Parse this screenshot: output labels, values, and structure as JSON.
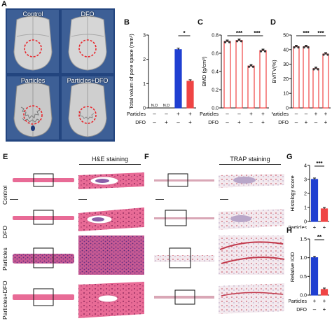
{
  "panels": {
    "a": "A",
    "b": "B",
    "c": "C",
    "d": "D",
    "e": "E",
    "f": "F",
    "g": "G",
    "h": "H"
  },
  "ct_labels": [
    "Control",
    "DFO",
    "Particles",
    "Particles+DFO"
  ],
  "colors": {
    "ct_background": "#23457f",
    "circle": "#e8262c",
    "bar_red": "#ef4444",
    "bar_blue": "#1f3fd1",
    "he_pink": "#e15b8a",
    "trap_red": "#c23a4c"
  },
  "stain_titles": {
    "he": "H&E staining",
    "trap": "TRAP staining"
  },
  "row_labels": [
    "Control",
    "DFO",
    "Particles",
    "Particles+DFO"
  ],
  "row_legend": {
    "particles": "Particles",
    "dfo": "DFO"
  },
  "chart_data": [
    {
      "id": "B",
      "type": "bar",
      "ylabel": "Total volum of pore space (mm³)",
      "ylim": [
        0,
        3
      ],
      "yticks": [
        "0",
        "1",
        "2",
        "3"
      ],
      "particles_signs": [
        "–",
        "–",
        "+",
        "+"
      ],
      "dfo_signs": [
        "–",
        "+",
        "–",
        "+"
      ],
      "values": [
        0,
        0,
        2.4,
        1.1
      ],
      "labels": [
        "N.D",
        "N.D",
        "",
        ""
      ],
      "bar_colors": [
        "none",
        "none",
        "blue",
        "red"
      ],
      "significance": [
        {
          "from": 2,
          "to": 3,
          "text": "*"
        }
      ]
    },
    {
      "id": "C",
      "type": "bar",
      "ylabel": "BMD (g/cm³)",
      "ylim": [
        0,
        0.8
      ],
      "yticks": [
        "0.0",
        "0.2",
        "0.4",
        "0.6",
        "0.8"
      ],
      "particles_signs": [
        "–",
        "–",
        "+",
        "+"
      ],
      "dfo_signs": [
        "–",
        "+",
        "–",
        "+"
      ],
      "values": [
        0.73,
        0.74,
        0.46,
        0.63
      ],
      "bar_colors": [
        "red",
        "red",
        "red",
        "red"
      ],
      "significance": [
        {
          "from": 0,
          "to": 2,
          "text": "***"
        },
        {
          "from": 2,
          "to": 3,
          "text": "***"
        }
      ]
    },
    {
      "id": "D",
      "type": "bar",
      "ylabel": "BV/TV(%)",
      "ylim": [
        0,
        50
      ],
      "yticks": [
        "0",
        "10",
        "20",
        "30",
        "40",
        "50"
      ],
      "particles_signs": [
        "–",
        "–",
        "+",
        "+"
      ],
      "dfo_signs": [
        "–",
        "+",
        "–",
        "+"
      ],
      "values": [
        42,
        42,
        27,
        37
      ],
      "bar_colors": [
        "red",
        "red",
        "red",
        "red"
      ],
      "significance": [
        {
          "from": 0,
          "to": 2,
          "text": "***"
        },
        {
          "from": 2,
          "to": 3,
          "text": "***"
        }
      ]
    },
    {
      "id": "G",
      "type": "bar",
      "ylabel": "Histology score",
      "ylim": [
        0,
        4
      ],
      "yticks": [
        "0",
        "1",
        "2",
        "3",
        "4"
      ],
      "particles_signs": [
        "+",
        "+"
      ],
      "dfo_signs": [
        "–",
        "+"
      ],
      "values": [
        3.0,
        0.9
      ],
      "bar_colors": [
        "blue",
        "red"
      ],
      "significance": [
        {
          "from": 0,
          "to": 1,
          "text": "***"
        }
      ]
    },
    {
      "id": "H",
      "type": "bar",
      "ylabel": "Relative IOD",
      "ylim": [
        0,
        1.5
      ],
      "yticks": [
        "0.0",
        "0.5",
        "1.0",
        "1.5"
      ],
      "particles_signs": [
        "+",
        "+"
      ],
      "dfo_signs": [
        "–",
        "+"
      ],
      "values": [
        1.0,
        0.15
      ],
      "bar_colors": [
        "blue",
        "red"
      ],
      "significance": [
        {
          "from": 0,
          "to": 1,
          "text": "**"
        }
      ]
    }
  ]
}
